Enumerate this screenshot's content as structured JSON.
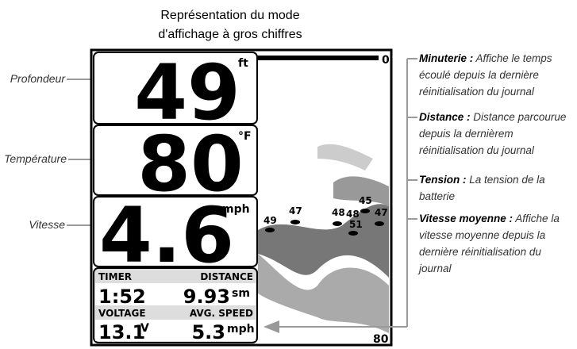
{
  "title": [
    "Représentation du mode",
    "d'affichage à gros chiffres"
  ],
  "left_labels": [
    "Profondeur",
    "Température",
    "Vitesse"
  ],
  "display": {
    "depth": {
      "value": "49",
      "unit": "ft"
    },
    "temperature": {
      "value": "80",
      "unit": "°F"
    },
    "speed": {
      "value": "4.6",
      "unit": "mph"
    },
    "timer": {
      "label": "TIMER",
      "value": "1:52"
    },
    "distance": {
      "label": "DISTANCE",
      "value": "9.93",
      "unit": "sm"
    },
    "voltage": {
      "label": "VOLTAGE",
      "value": "13.1",
      "unit": "V"
    },
    "avg_speed": {
      "label": "AVG. SPEED",
      "value": "5.3",
      "unit": "mph"
    },
    "sonar": {
      "top_depth": "0",
      "bottom_depth": "80",
      "fish": [
        "49",
        "47",
        "48",
        "48",
        "45",
        "47",
        "51"
      ]
    }
  },
  "annotations": [
    {
      "term": "Minuterie :",
      "text": "Affiche le temps écoulé depuis la dernière réinitialisation du journal"
    },
    {
      "term": "Distance :",
      "text": "Distance parcourue depuis la dernièrem réinitialisation du journal"
    },
    {
      "term": "Tension :",
      "text": "La tension de la batterie"
    },
    {
      "term": "Vitesse moyenne :",
      "text": "Affiche la vitesse moyenne depuis la dernière réinitialisation du journal"
    }
  ]
}
